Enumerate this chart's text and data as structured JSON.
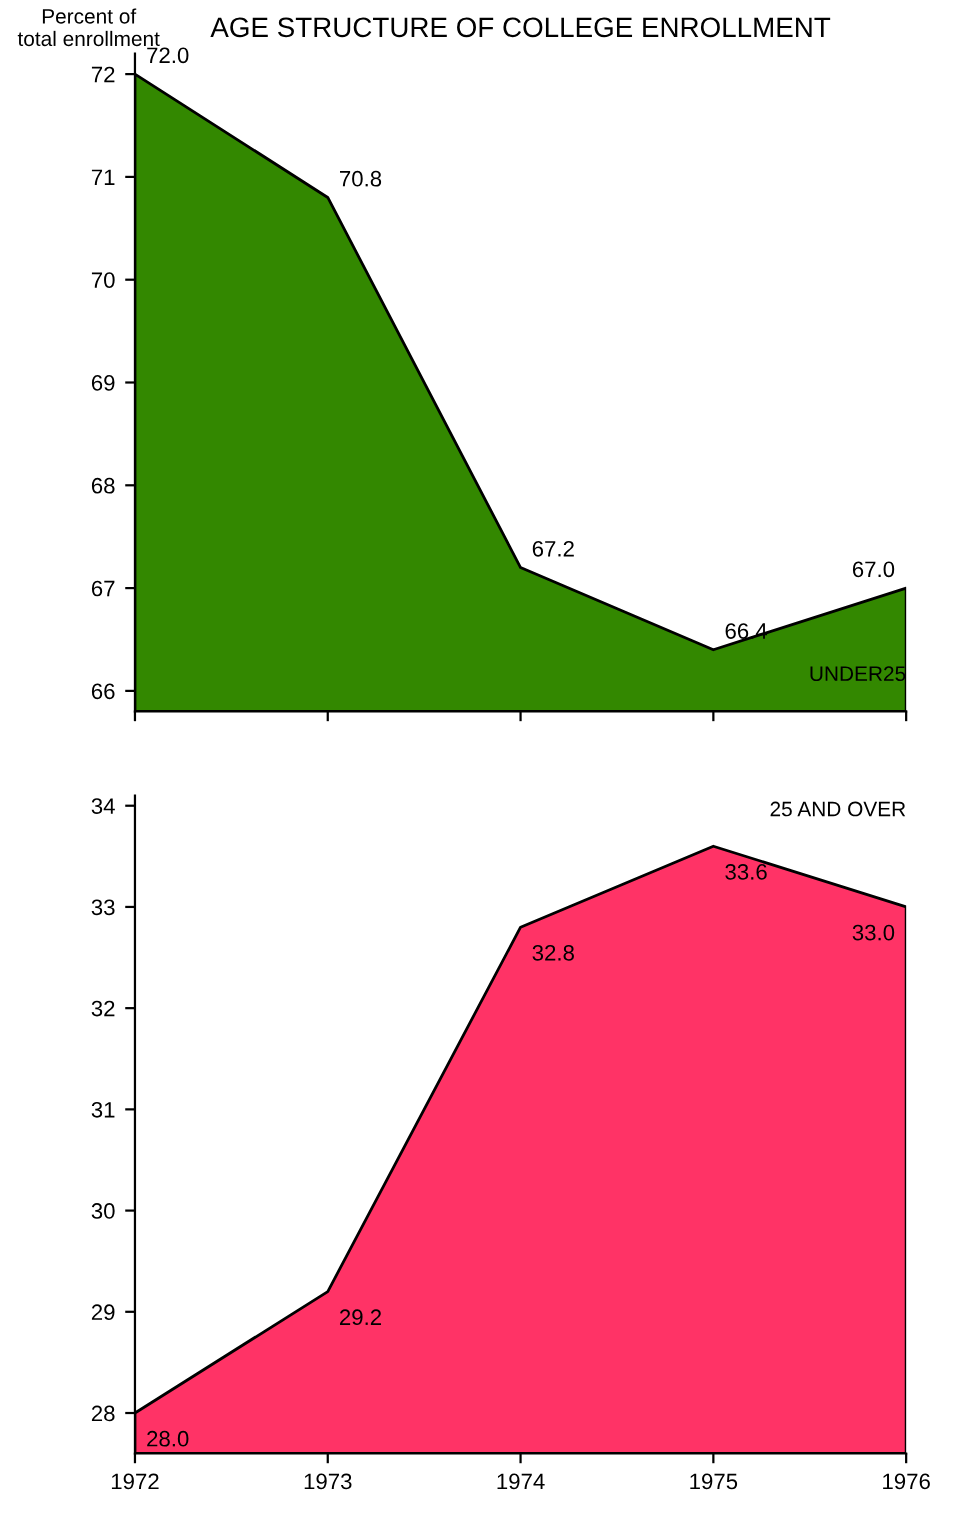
{
  "chart_data": [
    {
      "type": "area",
      "title": "AGE STRUCTURE OF COLLEGE ENROLLMENT",
      "ylabel": "Percent of\ntotal enrollment",
      "x": [
        1972,
        1973,
        1974,
        1975,
        1976
      ],
      "series": [
        {
          "name": "UNDER25",
          "color": "#338800",
          "values": [
            72.0,
            70.8,
            67.2,
            66.4,
            67.0
          ],
          "value_labels": [
            "72.0",
            "70.8",
            "67.2",
            "66.4",
            "67.0"
          ]
        }
      ],
      "xlim": [
        1972,
        1976
      ],
      "ylim": [
        65.8,
        72.2
      ],
      "yticks": [
        66,
        67,
        68,
        69,
        70,
        71,
        72
      ],
      "xticks": [
        1972,
        1973,
        1974,
        1975,
        1976
      ],
      "tick_labels": "y",
      "grid": false,
      "legend": false
    },
    {
      "type": "area",
      "x": [
        1972,
        1973,
        1974,
        1975,
        1976
      ],
      "series": [
        {
          "name": "25 AND OVER",
          "color": "#ff3366",
          "values": [
            28.0,
            29.2,
            32.8,
            33.6,
            33.0
          ],
          "value_labels": [
            "28.0",
            "29.2",
            "32.8",
            "33.6",
            "33.0"
          ]
        }
      ],
      "xlim": [
        1972,
        1976
      ],
      "ylim": [
        27.6,
        34.1
      ],
      "yticks": [
        28,
        29,
        30,
        31,
        32,
        33,
        34
      ],
      "xticks": [
        1972,
        1973,
        1974,
        1975,
        1976
      ],
      "grid": false,
      "legend": false
    }
  ]
}
